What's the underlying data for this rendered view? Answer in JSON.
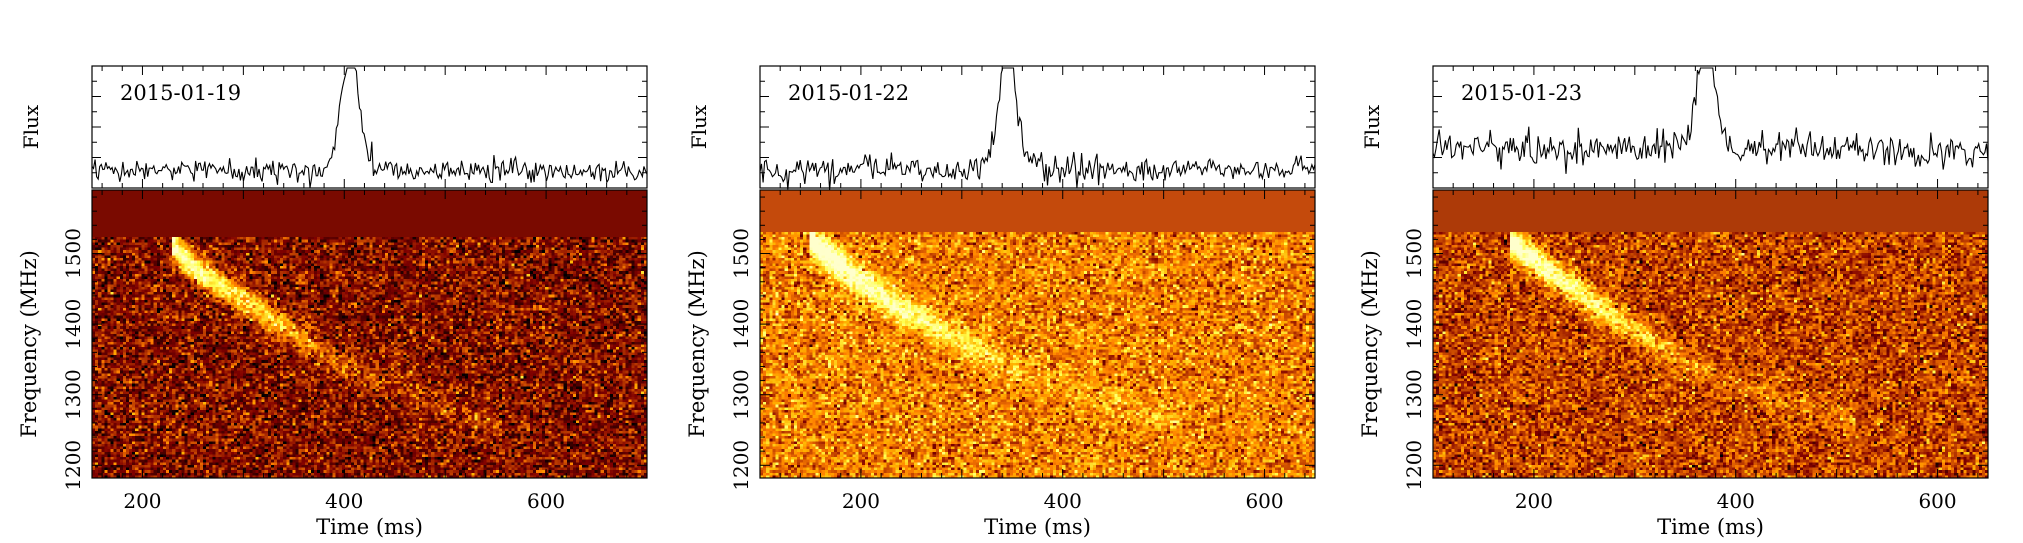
{
  "chart_data": [
    {
      "type": "heatmap",
      "date_label": "2015-01-19",
      "flux_label": "Flux",
      "xlabel": "Time (ms)",
      "ylabel": "Frequency (MHz)",
      "xlim": [
        150,
        700
      ],
      "ylim": [
        1182,
        1590
      ],
      "xticks": [
        200,
        400,
        600
      ],
      "yticks": [
        1200,
        1300,
        1400,
        1500
      ],
      "flux_series": {
        "peak_time_ms": 405,
        "peak_width_ms": 9,
        "peak_height": 1.0,
        "noise": 0.05,
        "baseline": 0.12
      },
      "dynamic_spectrum": {
        "band_top_mhz": 1522,
        "dispersed_track": [
          [
            228,
            1512
          ],
          [
            260,
            1470
          ],
          [
            300,
            1435
          ],
          [
            400,
            1340
          ],
          [
            500,
            1280
          ],
          [
            560,
            1252
          ]
        ],
        "colors": {
          "flagged_band": "#7a0a00",
          "background": "#7f1a06",
          "peak": "#fff6c8"
        },
        "noise_brightness": 0.26
      }
    },
    {
      "type": "heatmap",
      "date_label": "2015-01-22",
      "flux_label": "Flux",
      "xlabel": "Time (ms)",
      "ylabel": "Frequency (MHz)",
      "xlim": [
        100,
        650
      ],
      "ylim": [
        1182,
        1590
      ],
      "xticks": [
        200,
        400,
        600
      ],
      "yticks": [
        1200,
        1300,
        1400,
        1500
      ],
      "flux_series": {
        "peak_time_ms": 345,
        "peak_width_ms": 9,
        "peak_height": 1.0,
        "noise": 0.06,
        "baseline": 0.14
      },
      "dynamic_spectrum": {
        "band_top_mhz": 1532,
        "dispersed_track": [
          [
            150,
            1520
          ],
          [
            190,
            1470
          ],
          [
            240,
            1420
          ],
          [
            350,
            1340
          ],
          [
            450,
            1290
          ],
          [
            520,
            1262
          ]
        ],
        "colors": {
          "flagged_band": "#c44a0c",
          "background": "#cf6718",
          "peak": "#fff8cc"
        },
        "noise_brightness": 0.5
      }
    },
    {
      "type": "heatmap",
      "date_label": "2015-01-23",
      "flux_label": "Flux",
      "xlabel": "Time (ms)",
      "ylabel": "Frequency (MHz)",
      "xlim": [
        100,
        650
      ],
      "ylim": [
        1182,
        1590
      ],
      "xticks": [
        200,
        400,
        600
      ],
      "yticks": [
        1200,
        1300,
        1400,
        1500
      ],
      "flux_series": {
        "peak_time_ms": 370,
        "peak_width_ms": 9,
        "peak_height": 0.9,
        "noise": 0.08,
        "baseline": 0.32
      },
      "dynamic_spectrum": {
        "band_top_mhz": 1532,
        "dispersed_track": [
          [
            175,
            1520
          ],
          [
            220,
            1470
          ],
          [
            260,
            1430
          ],
          [
            350,
            1345
          ],
          [
            450,
            1290
          ],
          [
            520,
            1262
          ]
        ],
        "colors": {
          "flagged_band": "#ad3a08",
          "background": "#b54a10",
          "peak": "#fff2c0"
        },
        "noise_brightness": 0.38
      }
    }
  ]
}
